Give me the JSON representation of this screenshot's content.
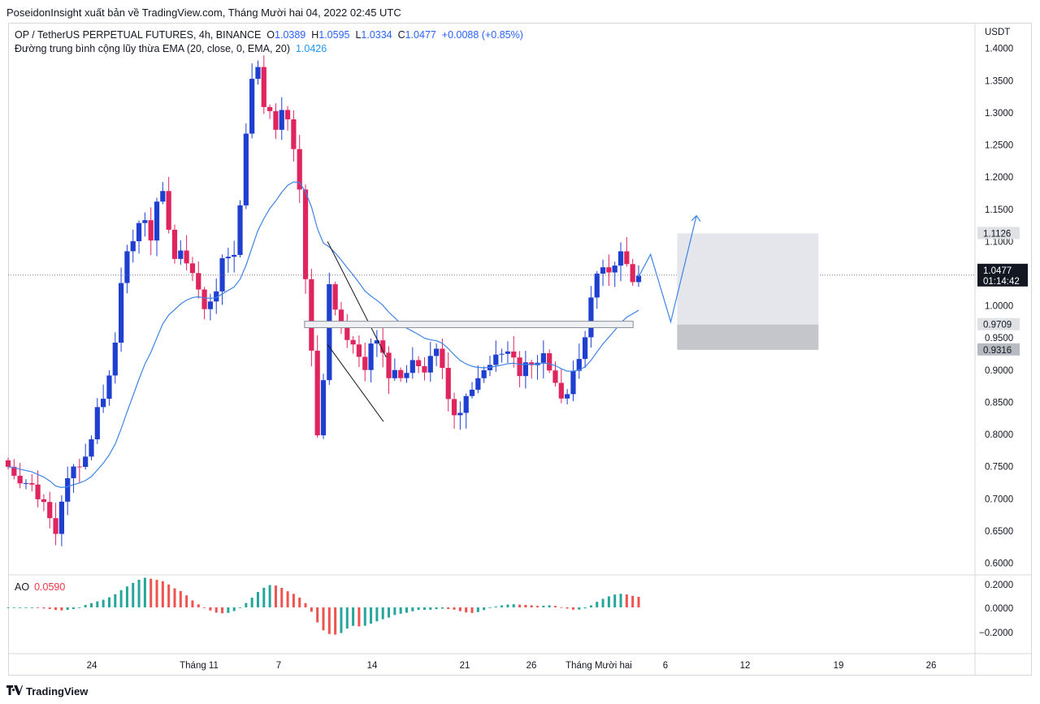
{
  "header": {
    "publisher_line": "PoseidonInsight xuất bản về TradingView.com, Tháng Mười hai 04, 2022 02:45 UTC"
  },
  "legend": {
    "symbol": "OP / TetherUS PERPETUAL FUTURES, 4h, BINANCE",
    "o_label": "O",
    "o_value": "1.0389",
    "h_label": "H",
    "h_value": "1.0595",
    "l_label": "L",
    "l_value": "1.0334",
    "c_label": "C",
    "c_value": "1.0477",
    "change": "+0.0088 (+0.85%)",
    "ema_label": "Đường trung bình cộng lũy thừa EMA (20, close, 0, EMA, 20)",
    "ema_value": "1.0426"
  },
  "ao_panel": {
    "label": "AO",
    "value": "0.0590"
  },
  "footer": {
    "brand": "TradingView",
    "logo_icon": "tradingview-logo-icon"
  },
  "colors": {
    "up": "#1e3fd0",
    "down": "#e0245e",
    "ema": "#3f83e6",
    "ao_up": "#26a69a",
    "ao_down": "#ef5350",
    "zone": "#e4e6eb",
    "zone_dark": "#c4c6cb"
  },
  "chart_data": {
    "type": "candlestick",
    "currency": "USDT",
    "price_axis_ticks": [
      "1.4000",
      "1.3500",
      "1.3000",
      "1.2500",
      "1.2000",
      "1.1500",
      "1.1000",
      "1.0500",
      "1.0000",
      "0.9500",
      "0.9000",
      "0.8500",
      "0.8000",
      "0.7500",
      "0.7000",
      "0.6500",
      "0.6000"
    ],
    "price_range": [
      0.583,
      1.44
    ],
    "time_axis_labels": [
      "24",
      "Tháng 11",
      "7",
      "14",
      "21",
      "26",
      "Tháng Mười hai",
      "6",
      "12",
      "19",
      "26"
    ],
    "price_labels": [
      {
        "value": "1.1126",
        "price": 1.1126,
        "style": "gray"
      },
      {
        "value": "1.0477",
        "price": 1.0477,
        "style": "current",
        "countdown": "01:14:42"
      },
      {
        "value": "0.9709",
        "price": 0.9709,
        "style": "gray"
      },
      {
        "value": "0.9316",
        "price": 0.9316,
        "style": "dark"
      }
    ],
    "price_path": [
      [
        0.0,
        0.75
      ],
      [
        2.5,
        0.72
      ],
      [
        4.6,
        0.68
      ],
      [
        5.3,
        0.65
      ],
      [
        6.0,
        0.72
      ],
      [
        8.5,
        0.76
      ],
      [
        9.3,
        0.82
      ],
      [
        10.6,
        0.86
      ],
      [
        11.5,
        0.92
      ],
      [
        12.4,
        1.05
      ],
      [
        13.6,
        1.1
      ],
      [
        14.7,
        1.15
      ],
      [
        15.7,
        1.1
      ],
      [
        16.3,
        1.16
      ],
      [
        17.2,
        1.18
      ],
      [
        17.8,
        1.08
      ],
      [
        19.4,
        1.08
      ],
      [
        20.9,
        1.02
      ],
      [
        21.7,
        0.98
      ],
      [
        22.5,
        1.02
      ],
      [
        23.5,
        1.08
      ],
      [
        24.3,
        1.06
      ],
      [
        25.3,
        1.15
      ],
      [
        25.8,
        1.25
      ],
      [
        26.5,
        1.35
      ],
      [
        27.2,
        1.38
      ],
      [
        27.8,
        1.32
      ],
      [
        28.5,
        1.3
      ],
      [
        29.3,
        1.28
      ],
      [
        30.0,
        1.33
      ],
      [
        30.6,
        1.27
      ],
      [
        31.4,
        1.22
      ],
      [
        32.0,
        1.16
      ],
      [
        32.6,
        1.0
      ],
      [
        33.3,
        0.9
      ],
      [
        33.7,
        0.8
      ],
      [
        34.4,
        0.88
      ],
      [
        34.8,
        1.06
      ],
      [
        35.5,
        1.0
      ],
      [
        36.5,
        0.96
      ],
      [
        37.7,
        0.93
      ],
      [
        38.7,
        0.89
      ],
      [
        39.5,
        0.94
      ],
      [
        40.6,
        0.94
      ],
      [
        41.4,
        0.9
      ],
      [
        42.6,
        0.88
      ],
      [
        43.7,
        0.9
      ],
      [
        44.6,
        0.91
      ],
      [
        45.7,
        0.9
      ],
      [
        46.5,
        0.93
      ],
      [
        47.5,
        0.9
      ],
      [
        48.3,
        0.84
      ],
      [
        49.1,
        0.83
      ],
      [
        49.5,
        0.85
      ],
      [
        50.6,
        0.86
      ],
      [
        51.3,
        0.9
      ],
      [
        52.5,
        0.92
      ],
      [
        53.3,
        0.93
      ],
      [
        54.4,
        0.92
      ],
      [
        55.6,
        0.9
      ],
      [
        56.8,
        0.91
      ],
      [
        57.5,
        0.92
      ],
      [
        58.3,
        0.92
      ],
      [
        59.2,
        0.89
      ],
      [
        59.8,
        0.86
      ],
      [
        60.6,
        0.86
      ],
      [
        61.4,
        0.89
      ],
      [
        62.0,
        0.9
      ],
      [
        62.6,
        0.94
      ],
      [
        63.4,
        1.0
      ],
      [
        64.1,
        1.04
      ],
      [
        64.8,
        1.05
      ],
      [
        65.6,
        1.06
      ],
      [
        66.4,
        1.07
      ],
      [
        67.0,
        1.09
      ],
      [
        67.5,
        1.06
      ],
      [
        68.1,
        1.04
      ],
      [
        68.7,
        1.045
      ]
    ],
    "projection_path": [
      [
        68.7,
        1.045
      ],
      [
        70.0,
        1.08
      ],
      [
        72.2,
        0.975
      ],
      [
        75.0,
        1.14
      ]
    ],
    "annotations": {
      "falling_wedge_upper": [
        [
          34.8,
          1.1
        ],
        [
          41.2,
          0.92
        ]
      ],
      "falling_wedge_lower": [
        [
          34.8,
          0.94
        ],
        [
          40.9,
          0.82
        ]
      ],
      "resistance_band": [
        [
          32.3,
          0.976
        ],
        [
          68.1,
          0.966
        ]
      ],
      "target_zone_light": [
        [
          72.9,
          1.1126
        ],
        [
          88.3,
          0.9709
        ]
      ],
      "target_zone_dark": [
        [
          72.9,
          0.9709
        ],
        [
          88.3,
          0.9316
        ]
      ]
    },
    "ao_axis_ticks": [
      "0.2000",
      "0.0000",
      "−0.2000"
    ]
  }
}
